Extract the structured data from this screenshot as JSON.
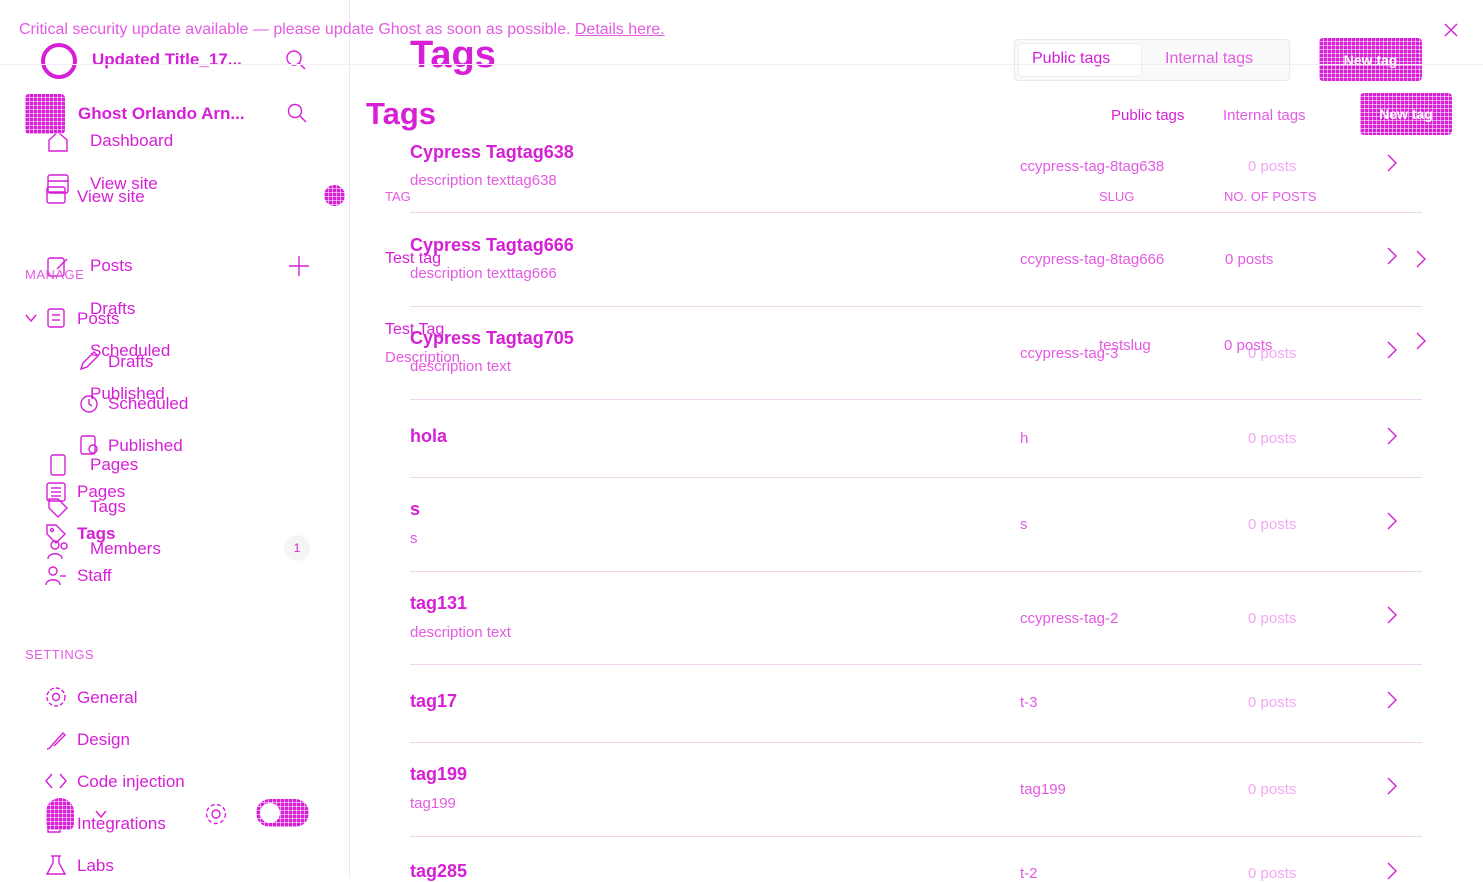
{
  "banner": {
    "message": "Critical security update available — please update Ghost as soon as possible.",
    "link": "Details here."
  },
  "ghost_layer": {
    "site_title": "Updated Title_17...",
    "page_title": "Tags",
    "tab_public": "Public tags",
    "tab_internal": "Internal tags",
    "new_tag": "New tag",
    "nav": [
      "Dashboard",
      "View site",
      "Posts",
      "Drafts",
      "Scheduled",
      "Published",
      "Pages",
      "Tags",
      "Members"
    ],
    "members_count": "1",
    "tags": [
      {
        "name": "Cypress Tagtag638",
        "desc": "description texttag638",
        "slug": "ccypress-tag-8tag638",
        "posts": "0 posts"
      },
      {
        "name": "Cypress Tagtag666",
        "desc": "description texttag666",
        "slug": "ccypress-tag-8tag666",
        "posts": "0 posts"
      },
      {
        "name": "Cypress Tagtag705",
        "desc": "description text",
        "slug": "ccypress-tag-3",
        "posts": "0 posts"
      },
      {
        "name": "hola",
        "desc": "",
        "slug": "h",
        "posts": "0 posts"
      },
      {
        "name": "s",
        "desc": "s",
        "slug": "s",
        "posts": "0 posts"
      },
      {
        "name": "tag131",
        "desc": "description text",
        "slug": "ccypress-tag-2",
        "posts": "0 posts"
      },
      {
        "name": "tag17",
        "desc": "",
        "slug": "t-3",
        "posts": "0 posts"
      },
      {
        "name": "tag199",
        "desc": "tag199",
        "slug": "tag199",
        "posts": "0 posts"
      },
      {
        "name": "tag285",
        "desc": "",
        "slug": "t-2",
        "posts": "0 posts"
      }
    ]
  },
  "main_layer": {
    "site_title": "Ghost Orlando Arn...",
    "page_title": "Tags",
    "tab_public": "Public tags",
    "tab_internal": "Internal tags",
    "new_tag": "New tag",
    "view_site": "View site",
    "manage_heading": "MANAGE",
    "nav": [
      "Posts",
      "Drafts",
      "Scheduled",
      "Published",
      "Pages",
      "Tags",
      "Staff"
    ],
    "settings_heading": "SETTINGS",
    "settings_nav": [
      "General",
      "Design",
      "Code injection",
      "Integrations",
      "Labs"
    ],
    "columns": [
      "TAG",
      "SLUG",
      "NO. OF POSTS"
    ],
    "tags": [
      {
        "name": "Test tag",
        "desc": "",
        "slug": "",
        "posts": ""
      },
      {
        "name": "Test Tag",
        "desc": "Description",
        "slug": "testslug",
        "posts": "0 posts"
      }
    ]
  },
  "colors": {
    "accent": "#d61fd6",
    "divider": "#f0d8f0"
  }
}
